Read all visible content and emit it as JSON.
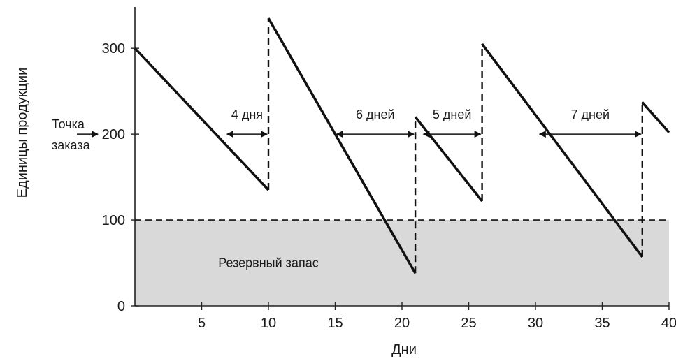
{
  "colors": {
    "line": "#111111",
    "safety_fill": "#d9d9d9",
    "axis": "#222222"
  },
  "chart_data": {
    "type": "line",
    "title": "",
    "xlabel": "Дни",
    "ylabel": "Единицы продукции",
    "xlim": [
      0,
      40
    ],
    "ylim": [
      0,
      340
    ],
    "x_ticks": [
      5,
      10,
      15,
      20,
      25,
      30,
      35,
      40
    ],
    "y_ticks": [
      0,
      100,
      200,
      300
    ],
    "grid": false,
    "series": [
      {
        "values": [
          {
            "x": 0,
            "y": 300
          },
          {
            "x": 10,
            "y": 135
          },
          {
            "x": 10,
            "y": 335
          },
          {
            "x": 21,
            "y": 38
          },
          {
            "x": 21,
            "y": 220
          },
          {
            "x": 26,
            "y": 122
          },
          {
            "x": 26,
            "y": 305
          },
          {
            "x": 38,
            "y": 57
          },
          {
            "x": 38,
            "y": 237
          },
          {
            "x": 40,
            "y": 202
          }
        ]
      }
    ],
    "reorder_point": 200,
    "safety_stock": 100,
    "safety_stock_label": "Резервный запас",
    "reorder_label": [
      "Точка",
      "заказа"
    ],
    "lead_times": [
      {
        "label": "4 дня",
        "from": 6.8,
        "to": 10,
        "y": 200
      },
      {
        "label": "6 дней",
        "from": 15.0,
        "to": 21,
        "y": 200
      },
      {
        "label": "5 дней",
        "from": 21.5,
        "to": 26,
        "y": 200
      },
      {
        "label": "7 дней",
        "from": 30.2,
        "to": 38,
        "y": 200
      }
    ]
  }
}
